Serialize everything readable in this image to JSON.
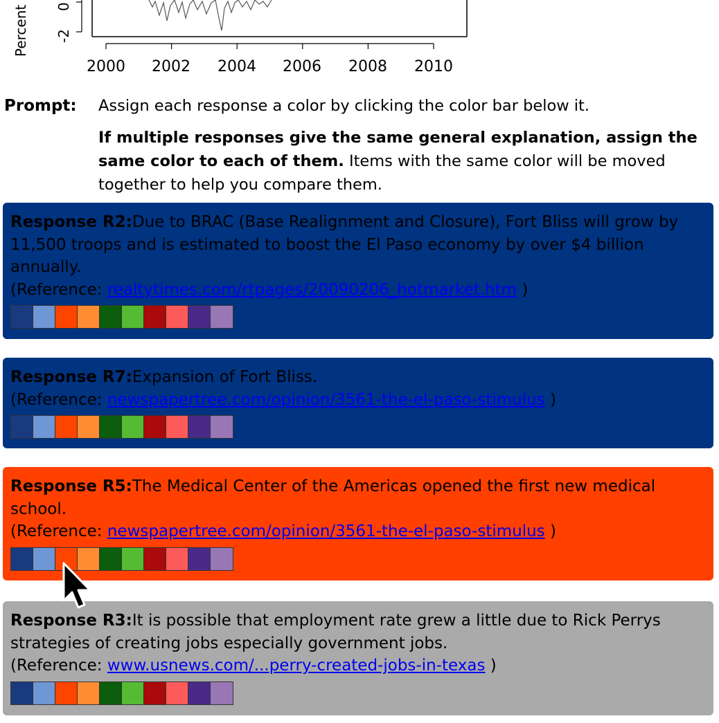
{
  "chart": {
    "ylabel": "Percent",
    "yticks": [
      "0",
      "-2"
    ],
    "xticks": [
      "2000",
      "2002",
      "2004",
      "2006",
      "2008",
      "2010"
    ]
  },
  "prompt": {
    "label": "Prompt:",
    "line1": "Assign each response a color by clicking the color bar below it.",
    "bold_text": "If multiple responses give the same general explanation, assign the same color to each of them.",
    "rest_text": " Items with the same color will be moved together to help you compare them."
  },
  "palette": [
    "#1a3a80",
    "#6f96d6",
    "#ff4400",
    "#ff8c33",
    "#0b5e0b",
    "#55bb33",
    "#aa0a0a",
    "#ff5a5a",
    "#4a2a88",
    "#9977b5"
  ],
  "responses": [
    {
      "title": "Response R2:",
      "text": "Due to BRAC (Base Realignment and Closure), Fort Bliss will grow by 11,500 troops and is estimated to boost the El Paso economy by over $4 billion annually.",
      "ref_prefix": "(Reference: ",
      "ref_link": "realtytimes.com/rtpages/20090206_hotmarket.htm",
      "ref_suffix": " )",
      "bg": "#003380"
    },
    {
      "title": "Response R7:",
      "text": "Expansion of Fort Bliss.",
      "ref_prefix": "(Reference: ",
      "ref_link": "newspapertree.com/opinion/3561-the-el-paso-stimulus",
      "ref_suffix": " )",
      "bg": "#003380"
    },
    {
      "title": "Response R5:",
      "text": "The Medical Center of the Americas opened the first new medical school.",
      "ref_prefix": "(Reference: ",
      "ref_link": "newspapertree.com/opinion/3561-the-el-paso-stimulus",
      "ref_suffix": " )",
      "bg": "#ff4000"
    },
    {
      "title": "Response R3:",
      "text": "It is possible that employment rate grew a little due to Rick Perrys strategies of creating jobs especially government jobs.",
      "ref_prefix": "(Reference: ",
      "ref_link": "www.usnews.com/...perry-created-jobs-in-texas",
      "ref_suffix": " )",
      "bg": "#aaaaaa"
    }
  ]
}
